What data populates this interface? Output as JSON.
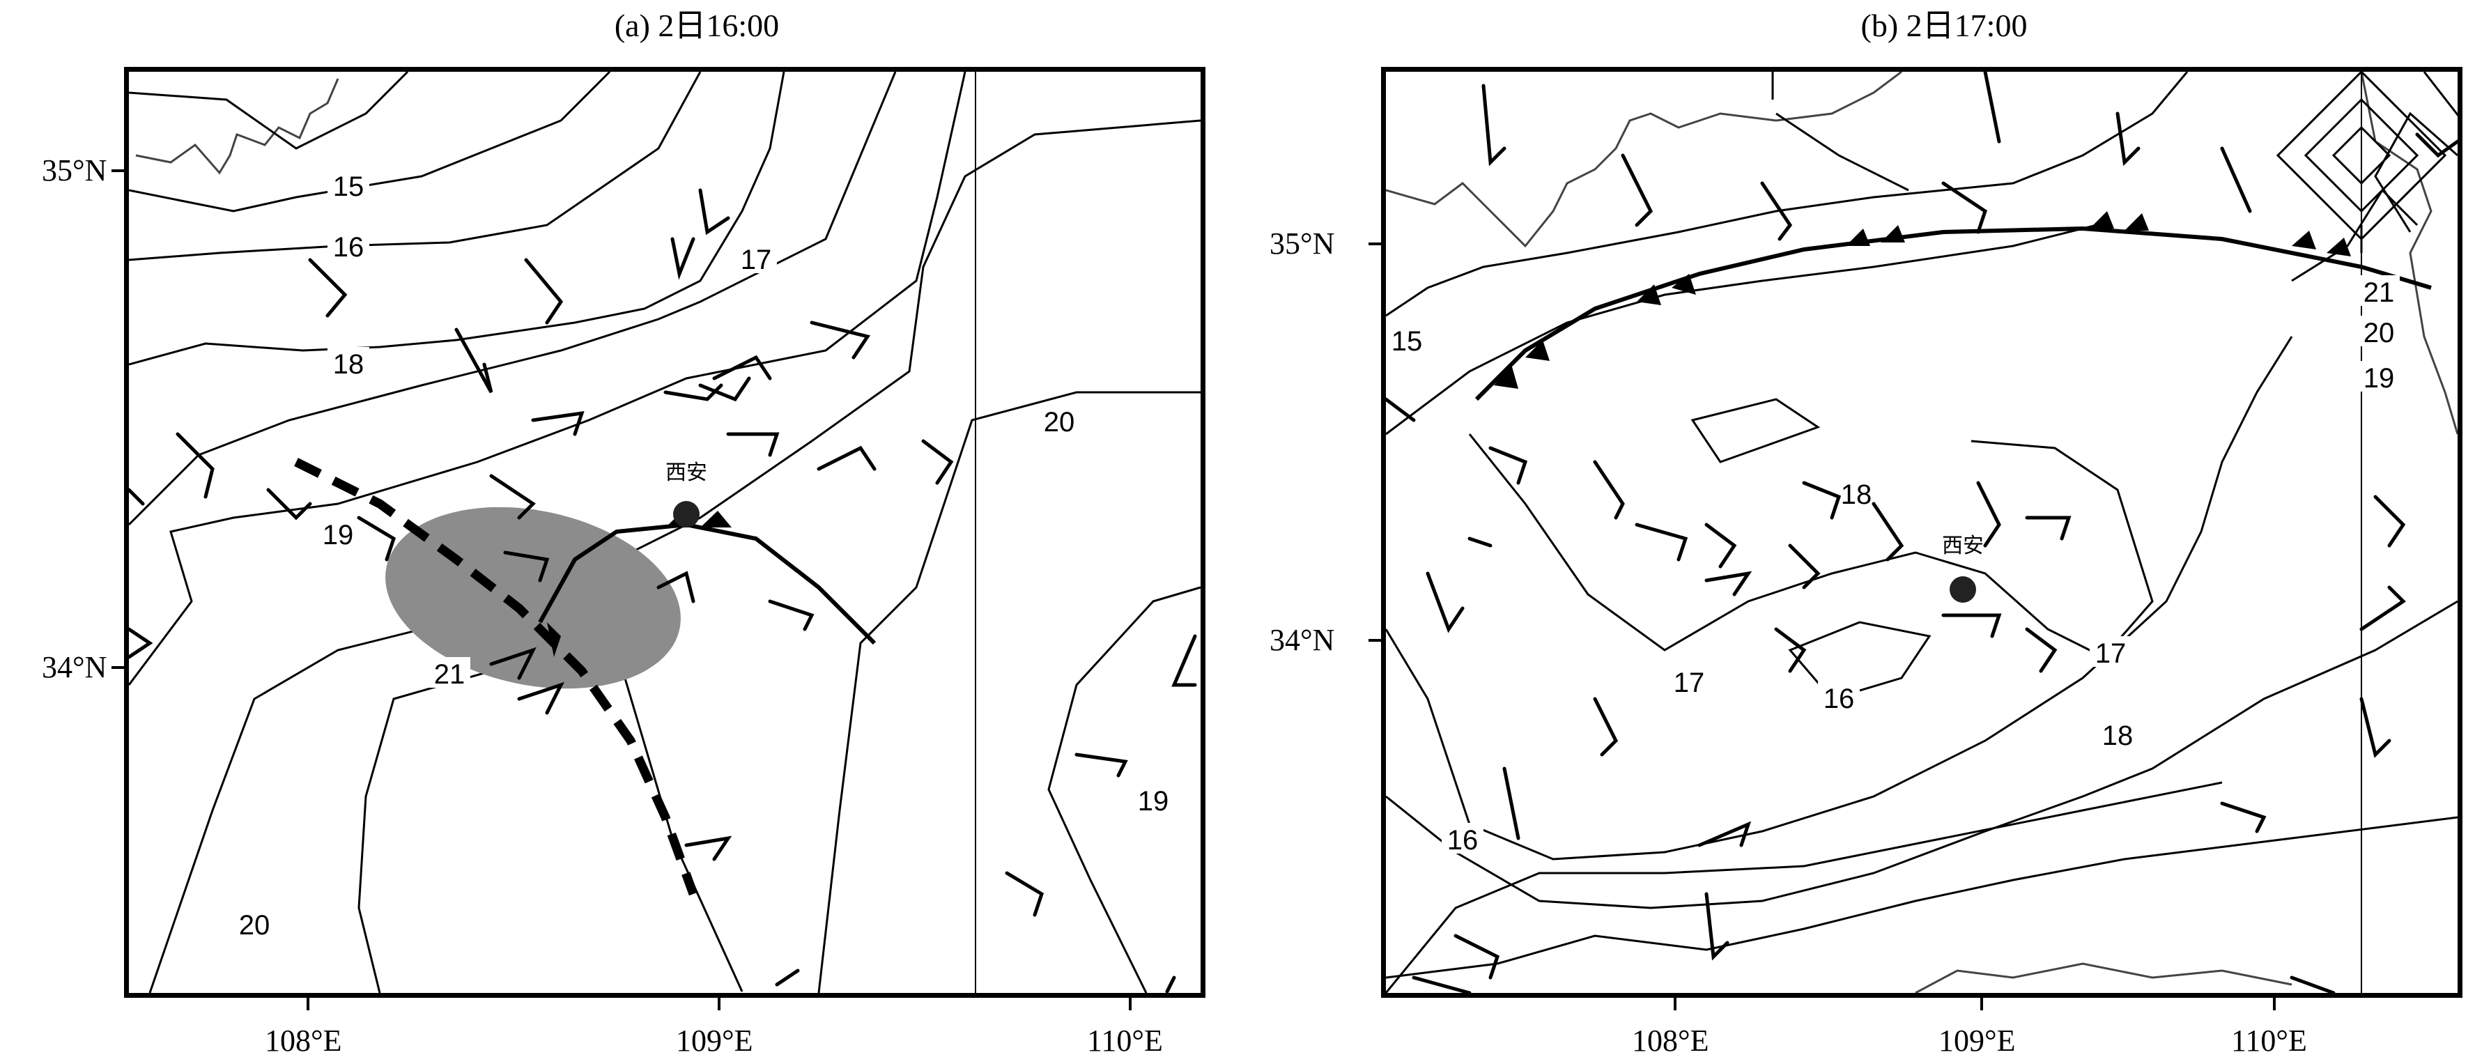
{
  "panels": [
    {
      "title": "(a) 2日16:00",
      "lat_labels": [
        "35°N",
        "34°N"
      ],
      "lon_labels": [
        "108°E",
        "109°E",
        "110°E"
      ],
      "contour_labels": [
        "15",
        "16",
        "17",
        "18",
        "19",
        "20",
        "21",
        "19",
        "20"
      ],
      "city_label": "西安",
      "features": [
        "isotherms",
        "wind-barbs",
        "cold-front",
        "convergence-line",
        "shaded-storm-area",
        "province-boundary"
      ]
    },
    {
      "title": "(b) 2日17:00",
      "lat_labels": [
        "35°N",
        "34°N"
      ],
      "lon_labels": [
        "108°E",
        "109°E",
        "110°E"
      ],
      "contour_labels": [
        "15",
        "18",
        "17",
        "16",
        "17",
        "18",
        "16",
        "21",
        "20",
        "19"
      ],
      "city_label": "西安",
      "features": [
        "isotherms",
        "wind-barbs",
        "cold-front",
        "province-boundary"
      ]
    }
  ]
}
